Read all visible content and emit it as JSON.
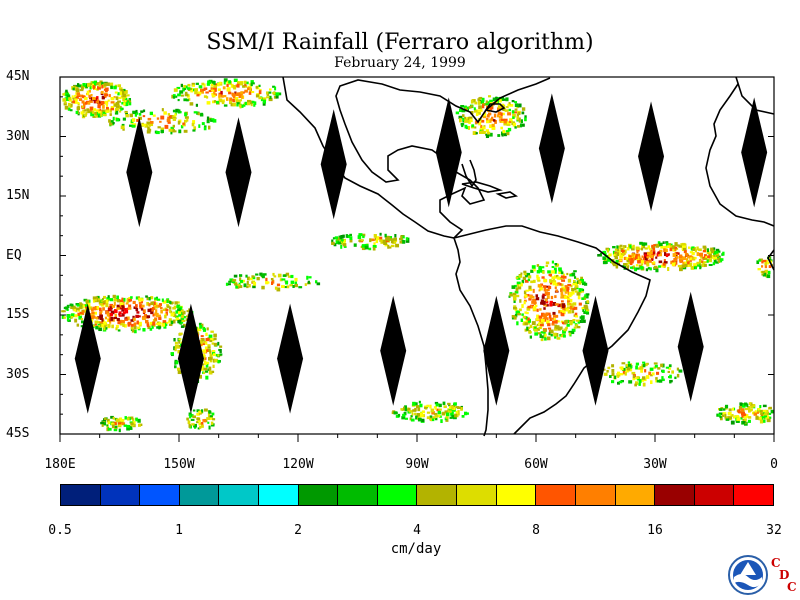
{
  "title": "SSM/I Rainfall (Ferraro algorithm)",
  "subtitle": "February 24, 1999",
  "map": {
    "lon_range": [
      -180,
      0
    ],
    "lat_range": [
      -45,
      45
    ],
    "lat_labels": [
      "45N",
      "30N",
      "15N",
      "EQ",
      "15S",
      "30S",
      "45S"
    ],
    "lat_values": [
      45,
      30,
      15,
      0,
      -15,
      -30,
      -45
    ],
    "lon_labels": [
      "180E",
      "150W",
      "120W",
      "90W",
      "60W",
      "30W",
      "0"
    ],
    "lon_values": [
      -180,
      -150,
      -120,
      -90,
      -60,
      -30,
      0
    ],
    "no_data_gaps": [
      {
        "lon": -160,
        "lat": 21
      },
      {
        "lon": -135,
        "lat": 21
      },
      {
        "lon": -111,
        "lat": 23
      },
      {
        "lon": -82,
        "lat": 26
      },
      {
        "lon": -56,
        "lat": 27
      },
      {
        "lon": -31,
        "lat": 25
      },
      {
        "lon": -5,
        "lat": 26
      },
      {
        "lon": -173,
        "lat": -26
      },
      {
        "lon": -147,
        "lat": -26
      },
      {
        "lon": -122,
        "lat": -26
      },
      {
        "lon": -96,
        "lat": -24
      },
      {
        "lon": -70,
        "lat": -24
      },
      {
        "lon": -45,
        "lat": -24
      },
      {
        "lon": -21,
        "lat": -23
      }
    ]
  },
  "colorbar": {
    "colors": [
      "#001f7a",
      "#0033bb",
      "#0055ff",
      "#009999",
      "#00c8c8",
      "#00ffff",
      "#009900",
      "#00bb00",
      "#00ff00",
      "#b3b300",
      "#dddd00",
      "#ffff00",
      "#ff5500",
      "#ff7f00",
      "#ffaa00",
      "#990000",
      "#cc0000",
      "#ff0000"
    ],
    "tick_labels": [
      "0.5",
      "1",
      "2",
      "4",
      "8",
      "16",
      "32"
    ],
    "units": "cm/day"
  },
  "logo": {
    "agency": "NOAA",
    "letters": [
      "C",
      "D",
      "C"
    ]
  }
}
